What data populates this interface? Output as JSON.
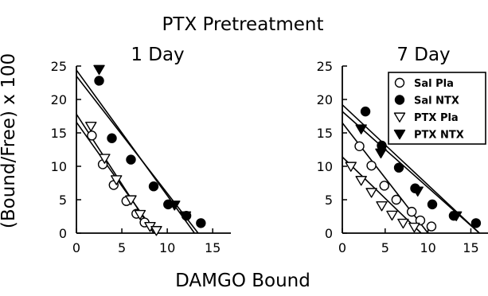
{
  "figure": {
    "title": "PTX Pretreatment",
    "xlabel": "DAMGO Bound",
    "ylabel": "(Bound/Free) x 100"
  },
  "chart_data": [
    {
      "type": "scatter",
      "subtitle": "1 Day",
      "xlim": [
        0,
        17
      ],
      "ylim": [
        0,
        25
      ],
      "xticks": [
        0,
        5,
        10,
        15
      ],
      "yticks": [
        0,
        5,
        10,
        15,
        20,
        25
      ],
      "series": [
        {
          "name": "Sal Pla",
          "marker": "circle-open",
          "points": [
            [
              1.7,
              14.6
            ],
            [
              2.9,
              10.3
            ],
            [
              4.1,
              7.2
            ],
            [
              5.5,
              4.8
            ],
            [
              6.6,
              2.9
            ],
            [
              7.5,
              1.6
            ]
          ],
          "fit": [
            [
              0,
              17.8
            ],
            [
              8.5,
              0
            ]
          ]
        },
        {
          "name": "Sal NTX",
          "marker": "circle-filled",
          "points": [
            [
              2.5,
              22.8
            ],
            [
              3.9,
              14.2
            ],
            [
              6.0,
              11.0
            ],
            [
              8.5,
              7.0
            ],
            [
              10.1,
              4.3
            ],
            [
              12.1,
              2.6
            ],
            [
              13.7,
              1.5
            ]
          ],
          "fit": [
            [
              0,
              23.5
            ],
            [
              13.4,
              0
            ]
          ]
        },
        {
          "name": "PTX Pla",
          "marker": "triangle-open",
          "points": [
            [
              1.6,
              16.0
            ],
            [
              3.1,
              11.2
            ],
            [
              4.4,
              8.0
            ],
            [
              6.0,
              5.0
            ],
            [
              7.0,
              2.8
            ],
            [
              8.1,
              1.0
            ],
            [
              8.8,
              0.4
            ]
          ],
          "fit": [
            [
              0,
              16.6
            ],
            [
              8.7,
              0
            ]
          ]
        },
        {
          "name": "PTX NTX",
          "marker": "triangle-filled",
          "points": [
            [
              2.5,
              24.5
            ],
            [
              10.8,
              4.2
            ],
            [
              12.0,
              2.6
            ]
          ],
          "fit": [
            [
              0,
              24.4
            ],
            [
              13.0,
              0
            ]
          ]
        }
      ]
    },
    {
      "type": "scatter",
      "subtitle": "7 Day",
      "xlim": [
        0,
        17
      ],
      "ylim": [
        0,
        25
      ],
      "xticks": [
        0,
        5,
        10,
        15
      ],
      "yticks": [
        0,
        5,
        10,
        15,
        20,
        25
      ],
      "legend": "top-right",
      "series": [
        {
          "name": "Sal Pla",
          "marker": "circle-open",
          "points": [
            [
              2.0,
              13.0
            ],
            [
              3.4,
              10.1
            ],
            [
              4.9,
              7.1
            ],
            [
              6.3,
              5.0
            ],
            [
              8.1,
              3.2
            ],
            [
              9.1,
              1.9
            ],
            [
              10.4,
              1.0
            ]
          ],
          "fit": [
            [
              0,
              16.5
            ],
            [
              10.0,
              0
            ]
          ]
        },
        {
          "name": "Sal NTX",
          "marker": "circle-filled",
          "points": [
            [
              2.7,
              18.2
            ],
            [
              4.6,
              13.1
            ],
            [
              6.6,
              9.8
            ],
            [
              8.5,
              6.7
            ],
            [
              10.5,
              4.3
            ],
            [
              13.0,
              2.6
            ],
            [
              15.6,
              1.5
            ]
          ],
          "fit": [
            [
              0,
              19.2
            ],
            [
              16.0,
              0
            ]
          ]
        },
        {
          "name": "PTX Pla",
          "marker": "triangle-open",
          "points": [
            [
              1.0,
              10.0
            ],
            [
              2.2,
              7.9
            ],
            [
              3.4,
              6.1
            ],
            [
              4.6,
              4.1
            ],
            [
              5.8,
              2.7
            ],
            [
              7.1,
              1.5
            ],
            [
              8.4,
              0.9
            ]
          ],
          "fit": [
            [
              0,
              11.4
            ],
            [
              9.2,
              0
            ]
          ]
        },
        {
          "name": "PTX NTX",
          "marker": "triangle-filled",
          "points": [
            [
              2.2,
              15.6
            ],
            [
              4.5,
              12.0
            ],
            [
              8.8,
              6.3
            ],
            [
              13.3,
              2.6
            ]
          ],
          "fit": [
            [
              0,
              18.2
            ],
            [
              16.0,
              0
            ]
          ]
        }
      ]
    }
  ]
}
